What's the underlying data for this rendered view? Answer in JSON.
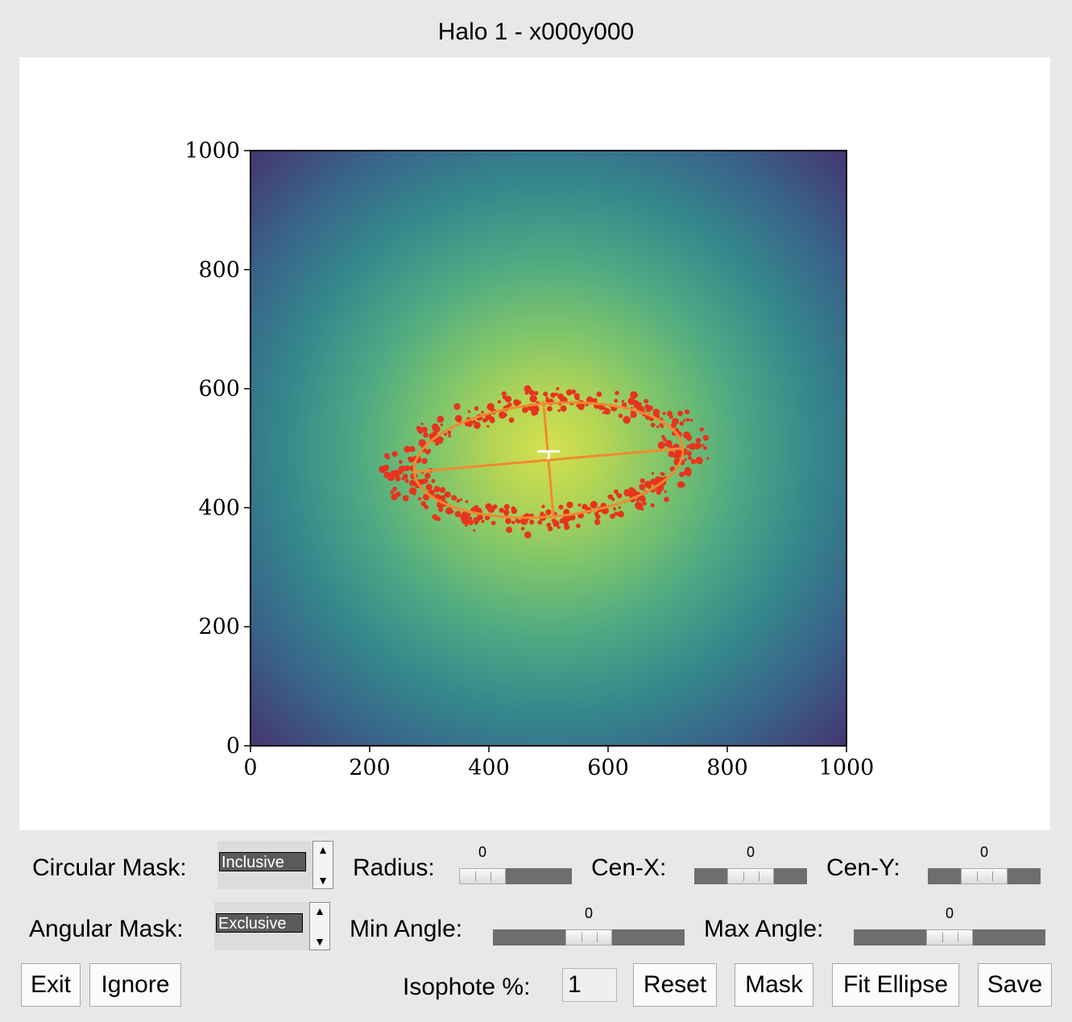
{
  "window": {
    "title": "Halo 1 - x000y000"
  },
  "chart_data": {
    "type": "heatmap",
    "title": "",
    "colormap": "viridis",
    "xlabel": "",
    "ylabel": "",
    "xlim": [
      0,
      1000
    ],
    "ylim": [
      0,
      1000
    ],
    "x_ticks": [
      "0",
      "200",
      "400",
      "600",
      "800",
      "1000"
    ],
    "y_ticks": [
      "0",
      "200",
      "400",
      "600",
      "800",
      "1000"
    ],
    "ellipse": {
      "center": [
        500,
        480
      ],
      "semi_major": 310,
      "semi_minor": 130,
      "angle_deg": -5,
      "color": "#f28a30"
    },
    "center_marker": {
      "x": 500,
      "y": 500,
      "color": "#ffffff"
    },
    "isophote_points_color": "#e8331e"
  },
  "controls": {
    "circular_mask": {
      "label": "Circular Mask:",
      "value": "Inclusive"
    },
    "angular_mask": {
      "label": "Angular Mask:",
      "value": "Exclusive"
    },
    "radius": {
      "label": "Radius:",
      "value": "0",
      "fraction": 0.0
    },
    "cen_x": {
      "label": "Cen-X:",
      "value": "0",
      "fraction": 0.5
    },
    "cen_y": {
      "label": "Cen-Y:",
      "value": "0",
      "fraction": 0.5
    },
    "min_angle": {
      "label": "Min Angle:",
      "value": "0",
      "fraction": 0.5
    },
    "max_angle": {
      "label": "Max Angle:",
      "value": "0",
      "fraction": 0.5
    },
    "isophote": {
      "label": "Isophote %:",
      "value": "1"
    }
  },
  "buttons": {
    "exit": "Exit",
    "ignore": "Ignore",
    "reset": "Reset",
    "mask": "Mask",
    "fit_ellipse": "Fit Ellipse",
    "save": "Save"
  }
}
